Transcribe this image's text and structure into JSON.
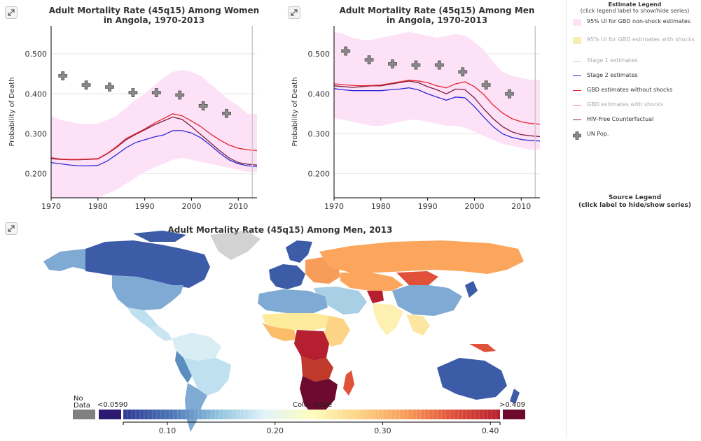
{
  "colors": {
    "ui_band": "#fde1f6",
    "ui_band_shock": "#f5eeb1",
    "stage1": "#5fd35f",
    "stage2": "#2a2adb",
    "gbd_no_shock": "#e8262f",
    "gbd_shock": "#e8262f",
    "hiv_free": "#7d1f3e",
    "un_pop": "#8a8a8a"
  },
  "chart_data": [
    {
      "type": "line",
      "title": "Adult Mortality Rate (45q15) Among Women in Angola, 1970-2013",
      "title_lines": [
        "Adult Mortality Rate (45q15) Among Women",
        "in Angola, 1970-2013"
      ],
      "xlabel": "",
      "ylabel": "Probability of Death",
      "xlim": [
        1970,
        2014
      ],
      "ylim": [
        0.14,
        0.57
      ],
      "x_ticks": [
        "1970",
        "1980",
        "1990",
        "2000",
        "2010"
      ],
      "y_ticks": [
        "0.200",
        "0.300",
        "0.400",
        "0.500"
      ],
      "y_tick_values": [
        0.2,
        0.3,
        0.4,
        0.5
      ],
      "x_tick_values": [
        1970,
        1980,
        1990,
        2000,
        2010
      ],
      "vline": 2013,
      "grid": true,
      "x": [
        1970,
        1972,
        1974,
        1976,
        1978,
        1980,
        1982,
        1984,
        1986,
        1988,
        1990,
        1992,
        1994,
        1996,
        1998,
        2000,
        2002,
        2004,
        2006,
        2008,
        2010,
        2012,
        2014
      ],
      "band": {
        "name": "95% UI for GBD non-shock estimates",
        "upper": [
          0.345,
          0.335,
          0.33,
          0.325,
          0.325,
          0.325,
          0.335,
          0.345,
          0.365,
          0.385,
          0.4,
          0.42,
          0.44,
          0.455,
          0.46,
          0.455,
          0.445,
          0.425,
          0.405,
          0.385,
          0.37,
          0.35,
          0.35
        ],
        "lower": [
          0.14,
          0.14,
          0.14,
          0.14,
          0.14,
          0.14,
          0.15,
          0.16,
          0.175,
          0.19,
          0.205,
          0.215,
          0.225,
          0.235,
          0.24,
          0.235,
          0.23,
          0.225,
          0.22,
          0.215,
          0.21,
          0.205,
          0.205
        ]
      },
      "series": [
        {
          "name": "Stage 2 estimates",
          "color_key": "stage2",
          "values": [
            0.228,
            0.225,
            0.222,
            0.22,
            0.22,
            0.221,
            0.232,
            0.248,
            0.265,
            0.278,
            0.285,
            0.292,
            0.297,
            0.308,
            0.308,
            0.302,
            0.29,
            0.272,
            0.252,
            0.235,
            0.225,
            0.22,
            0.218
          ]
        },
        {
          "name": "HIV-Free Counterfactual",
          "color_key": "hiv_free",
          "values": [
            0.238,
            0.236,
            0.235,
            0.235,
            0.236,
            0.237,
            0.25,
            0.266,
            0.285,
            0.298,
            0.31,
            0.322,
            0.332,
            0.342,
            0.336,
            0.318,
            0.298,
            0.278,
            0.258,
            0.24,
            0.228,
            0.224,
            0.222
          ]
        },
        {
          "name": "GBD estimates without shocks",
          "color_key": "gbd_no_shock",
          "values": [
            0.24,
            0.237,
            0.236,
            0.236,
            0.237,
            0.238,
            0.251,
            0.268,
            0.288,
            0.3,
            0.312,
            0.326,
            0.338,
            0.35,
            0.345,
            0.332,
            0.318,
            0.3,
            0.285,
            0.272,
            0.264,
            0.26,
            0.258
          ]
        }
      ],
      "points": {
        "name": "UN Pop.",
        "x": [
          1972.5,
          1977.5,
          1982.5,
          1987.5,
          1992.5,
          1997.5,
          2002.5,
          2007.5
        ],
        "y": [
          0.445,
          0.422,
          0.417,
          0.403,
          0.403,
          0.397,
          0.37,
          0.351
        ]
      }
    },
    {
      "type": "line",
      "title": "Adult Mortality Rate (45q15) Among Men in Angola, 1970-2013",
      "title_lines": [
        "Adult Mortality Rate (45q15) Among Men",
        "in Angola, 1970-2013"
      ],
      "xlabel": "",
      "ylabel": "Probability of Death",
      "xlim": [
        1970,
        2014
      ],
      "ylim": [
        0.14,
        0.57
      ],
      "x_ticks": [
        "1970",
        "1980",
        "1990",
        "2000",
        "2010"
      ],
      "y_ticks": [
        "0.200",
        "0.300",
        "0.400",
        "0.500"
      ],
      "y_tick_values": [
        0.2,
        0.3,
        0.4,
        0.5
      ],
      "x_tick_values": [
        1970,
        1980,
        1990,
        2000,
        2010
      ],
      "vline": 2013,
      "grid": true,
      "x": [
        1970,
        1972,
        1974,
        1976,
        1978,
        1980,
        1982,
        1984,
        1986,
        1988,
        1990,
        1992,
        1994,
        1996,
        1998,
        2000,
        2002,
        2004,
        2006,
        2008,
        2010,
        2012,
        2014
      ],
      "band": {
        "name": "95% UI for GBD non-shock estimates",
        "upper": [
          0.555,
          0.55,
          0.54,
          0.535,
          0.535,
          0.54,
          0.545,
          0.55,
          0.555,
          0.55,
          0.545,
          0.54,
          0.545,
          0.55,
          0.545,
          0.53,
          0.51,
          0.48,
          0.455,
          0.445,
          0.44,
          0.435,
          0.435
        ],
        "lower": [
          0.34,
          0.335,
          0.33,
          0.325,
          0.32,
          0.32,
          0.325,
          0.33,
          0.335,
          0.335,
          0.33,
          0.325,
          0.32,
          0.32,
          0.315,
          0.305,
          0.295,
          0.285,
          0.275,
          0.27,
          0.265,
          0.26,
          0.26
        ]
      },
      "series": [
        {
          "name": "Stage 2 estimates",
          "color_key": "stage2",
          "values": [
            0.413,
            0.41,
            0.408,
            0.408,
            0.408,
            0.408,
            0.41,
            0.412,
            0.415,
            0.41,
            0.4,
            0.392,
            0.384,
            0.392,
            0.39,
            0.368,
            0.342,
            0.318,
            0.3,
            0.291,
            0.286,
            0.283,
            0.282
          ]
        },
        {
          "name": "HIV-Free Counterfactual",
          "color_key": "hiv_free",
          "values": [
            0.42,
            0.418,
            0.416,
            0.418,
            0.42,
            0.42,
            0.424,
            0.428,
            0.432,
            0.428,
            0.418,
            0.41,
            0.4,
            0.412,
            0.41,
            0.39,
            0.362,
            0.338,
            0.318,
            0.305,
            0.298,
            0.295,
            0.293
          ]
        },
        {
          "name": "GBD estimates without shocks",
          "color_key": "gbd_no_shock",
          "values": [
            0.425,
            0.423,
            0.421,
            0.42,
            0.421,
            0.422,
            0.426,
            0.43,
            0.434,
            0.432,
            0.428,
            0.42,
            0.415,
            0.425,
            0.43,
            0.418,
            0.398,
            0.372,
            0.352,
            0.338,
            0.33,
            0.326,
            0.324
          ]
        }
      ],
      "points": {
        "name": "UN Pop.",
        "x": [
          1972.5,
          1977.5,
          1982.5,
          1987.5,
          1992.5,
          1997.5,
          2002.5,
          2007.5
        ],
        "y": [
          0.507,
          0.485,
          0.475,
          0.472,
          0.472,
          0.455,
          0.422,
          0.4
        ]
      }
    },
    {
      "type": "heatmap",
      "title": "Adult Mortality Rate (45q15) Among Men, 2013",
      "color_scale": {
        "label": "Color Scale",
        "no_data_label": "No Data",
        "low_label": "<0.0590",
        "high_label": ">0.409",
        "min": 0.059,
        "max": 0.409,
        "ticks": [
          "0.10",
          "0.20",
          "0.30",
          "0.40"
        ],
        "tick_values": [
          0.1,
          0.2,
          0.3,
          0.4
        ],
        "stops": [
          "#2f3b95",
          "#4a74b4",
          "#8fc2de",
          "#e0f3f8",
          "#fffdbf",
          "#fdd385",
          "#f89d59",
          "#e1513a",
          "#b51f2f"
        ]
      }
    }
  ],
  "legend": {
    "title": "Estimate Legend",
    "hint": "(click legend label to show/hide series)",
    "items": [
      {
        "label": "95% UI for GBD non-shock estimates",
        "color_key": "ui_band",
        "kind": "box",
        "enabled": true
      },
      {
        "label": "95% UI for GBD estimates with shocks",
        "color_key": "ui_band_shock",
        "kind": "box",
        "enabled": false
      },
      {
        "label": "Stage 1 estimates",
        "color_key": "stage1",
        "kind": "line",
        "enabled": false
      },
      {
        "label": "Stage 2 estimates",
        "color_key": "stage2",
        "kind": "line",
        "enabled": true
      },
      {
        "label": "GBD estimates without shocks",
        "color_key": "gbd_no_shock",
        "kind": "line",
        "enabled": true
      },
      {
        "label": "GBD estimates with shocks",
        "color_key": "gbd_shock",
        "kind": "line",
        "enabled": false
      },
      {
        "label": "HIV-Free Counterfactual",
        "color_key": "hiv_free",
        "kind": "line",
        "enabled": true
      },
      {
        "label": "UN Pop.",
        "color_key": "un_pop",
        "kind": "plus",
        "enabled": true
      }
    ],
    "source_title": "Source Legend",
    "source_hint": "(click label to hide/show series)"
  }
}
